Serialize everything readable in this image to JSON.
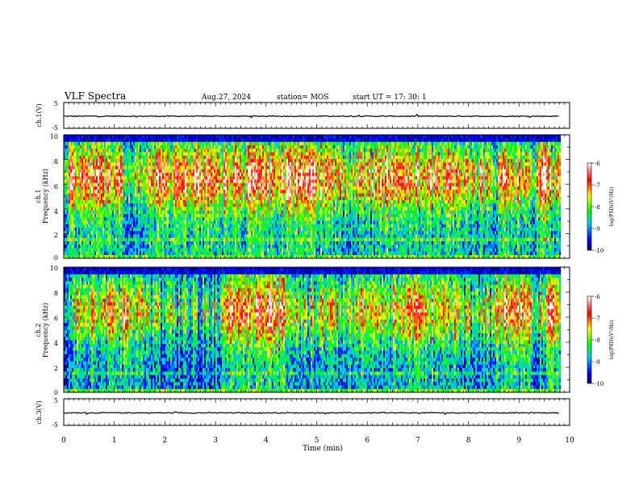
{
  "header": {
    "title": "VLF Spectra",
    "date": "Aug.27, 2024",
    "station": "station= MOS",
    "start": "start  UT  =   17: 30: 1"
  },
  "colorbar": {
    "label": "log(PSD)(V²/Hz)",
    "ticks": [
      "-6",
      "-7",
      "-8",
      "-9",
      "-10"
    ],
    "range": [
      -10,
      -6
    ]
  },
  "chart_data": [
    {
      "type": "line",
      "name": "ch1-waveform",
      "ylabel": "ch.1(V)",
      "ylim": [
        -5,
        5
      ],
      "yticks": [
        "5",
        "-5"
      ],
      "x": [
        0,
        10
      ],
      "values_approx": [
        -0.3,
        -0.3
      ]
    },
    {
      "type": "heatmap",
      "name": "ch1-spectrogram",
      "ylabel_lines": [
        "ch.1",
        "Frequency (kHz)"
      ],
      "ylim": [
        0,
        10
      ],
      "yticks": [
        "0",
        "2",
        "4",
        "6",
        "8",
        "10"
      ],
      "xlim": [
        0,
        9.8
      ],
      "band_peak_khz": 6.5
    },
    {
      "type": "heatmap",
      "name": "ch2-spectrogram",
      "ylabel_lines": [
        "ch.2",
        "Frequency (kHz)"
      ],
      "ylim": [
        0,
        10
      ],
      "yticks": [
        "0",
        "2",
        "4",
        "6",
        "8",
        "10"
      ],
      "xlim": [
        0,
        9.8
      ],
      "band_peak_khz": 6.5
    },
    {
      "type": "line",
      "name": "ch3-waveform",
      "ylabel": "ch.3(V)",
      "ylim": [
        -5,
        5
      ],
      "yticks": [
        "5",
        "-5"
      ],
      "x": [
        0,
        10
      ],
      "values_approx": [
        -0.3,
        -0.3
      ]
    }
  ],
  "xaxis": {
    "label": "Time  (min)",
    "ticks": [
      "0",
      "1",
      "2",
      "3",
      "4",
      "5",
      "6",
      "7",
      "8",
      "9",
      "10"
    ],
    "xlim": [
      0,
      10
    ]
  }
}
